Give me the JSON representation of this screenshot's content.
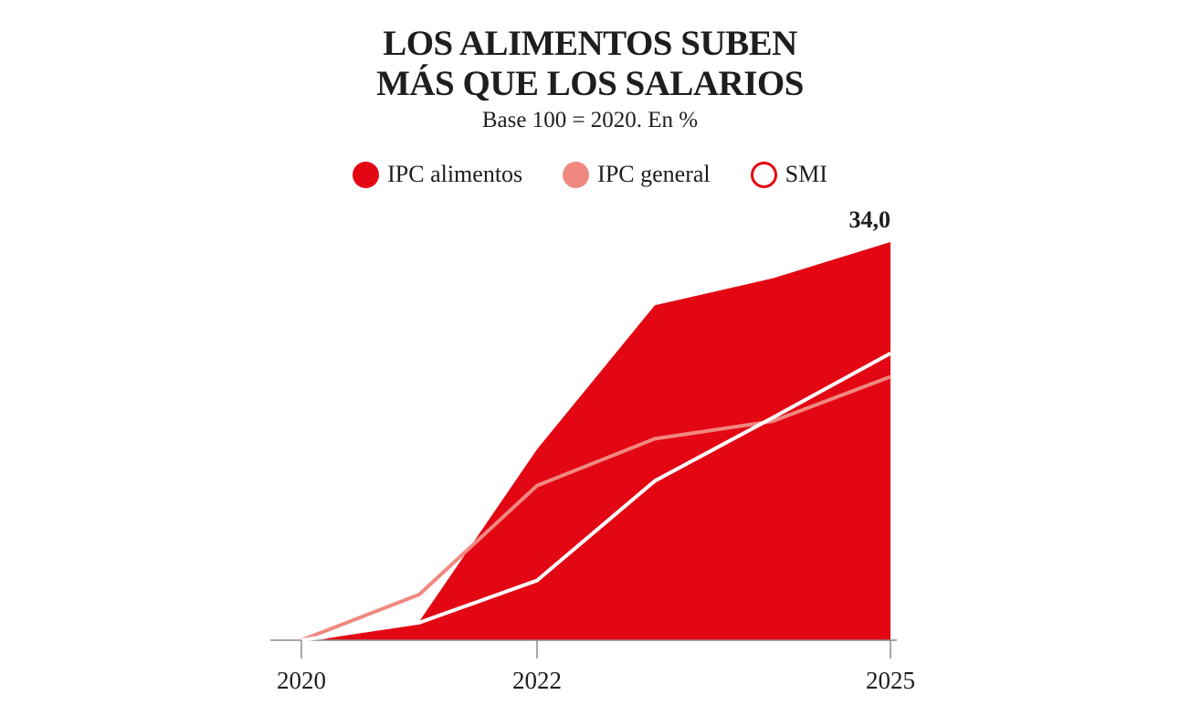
{
  "chart_data": {
    "type": "area",
    "title_lines": [
      "LOS ALIMENTOS SUBEN",
      "MÁS QUE LOS SALARIOS"
    ],
    "subtitle": "Base 100 = 2020. En %",
    "x": [
      2020,
      2021,
      2022,
      2023,
      2024,
      2025
    ],
    "x_ticks": [
      "2020",
      "2022",
      "2025"
    ],
    "x_tick_values": [
      2020,
      2022,
      2025
    ],
    "ylim": [
      0,
      34
    ],
    "grid": false,
    "legend_position": "top-center",
    "series": [
      {
        "name": "IPC alimentos",
        "kind": "area",
        "color": "#e30613",
        "values": [
          0,
          1.6,
          16.3,
          28.6,
          30.9,
          34.0
        ]
      },
      {
        "name": "IPC general",
        "kind": "line",
        "color": "#f08880",
        "values": [
          0,
          3.9,
          13.2,
          17.2,
          18.7,
          22.5
        ]
      },
      {
        "name": "SMI",
        "kind": "line",
        "color": "#ffffff",
        "legend_stroke": "#e30613",
        "values": [
          0,
          1.5,
          5.1,
          13.6,
          19.0,
          24.5
        ]
      }
    ],
    "annotations": [
      {
        "series": "IPC alimentos",
        "x": 2025,
        "text": "34,0"
      }
    ]
  },
  "legend": [
    {
      "label": "IPC alimentos"
    },
    {
      "label": "IPC general"
    },
    {
      "label": "SMI"
    }
  ]
}
